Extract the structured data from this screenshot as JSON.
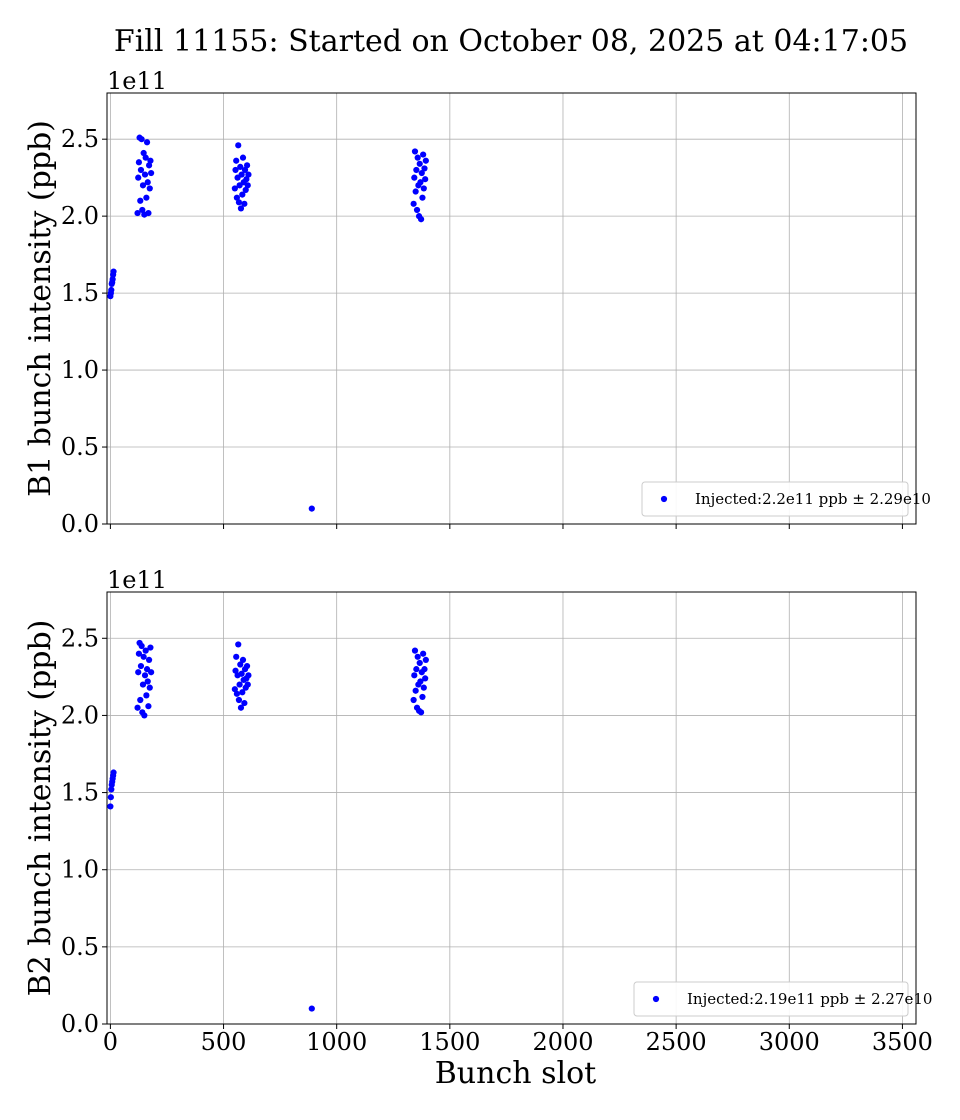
{
  "title": "Fill 11155: Started on October 08, 2025 at 04:17:05",
  "x_ticks": [
    0,
    500,
    1000,
    1500,
    2000,
    2500,
    3000,
    3500
  ],
  "y_ticks": [
    "0.0",
    "0.5",
    "1.0",
    "1.5",
    "2.0",
    "2.5"
  ],
  "colors": {
    "points": "#0000ff",
    "grid": "#b0b0b0",
    "axis": "#000000"
  },
  "chart_data": [
    {
      "type": "scatter",
      "ylabel": "B1 bunch intensity (ppb)",
      "xlabel": "",
      "y_scale_label": "1e11",
      "xlim": [
        -15,
        3560
      ],
      "ylim": [
        0,
        2.8
      ],
      "grid": true,
      "legend_position": "bottom-right",
      "series": [
        {
          "name": "Injected:2.2e11 ppb ± 2.29e10",
          "x": [
            0,
            2,
            4,
            6,
            8,
            10,
            12,
            14,
            120,
            123,
            126,
            129,
            132,
            135,
            138,
            141,
            144,
            147,
            150,
            153,
            156,
            159,
            162,
            165,
            168,
            171,
            174,
            177,
            180,
            550,
            553,
            556,
            559,
            562,
            565,
            568,
            571,
            574,
            577,
            580,
            583,
            586,
            589,
            592,
            595,
            598,
            601,
            604,
            607,
            610,
            890,
            1340,
            1343,
            1346,
            1349,
            1352,
            1355,
            1358,
            1361,
            1364,
            1367,
            1370,
            1373,
            1376,
            1379,
            1382,
            1385,
            1388,
            1391,
            1394
          ],
          "y": [
            1.48,
            1.5,
            1.52,
            1.56,
            1.57,
            1.59,
            1.62,
            1.64,
            2.02,
            2.25,
            2.35,
            2.51,
            2.1,
            2.3,
            2.5,
            2.04,
            2.2,
            2.41,
            2.01,
            2.27,
            2.38,
            2.12,
            2.48,
            2.22,
            2.02,
            2.33,
            2.18,
            2.36,
            2.28,
            2.18,
            2.3,
            2.36,
            2.12,
            2.25,
            2.46,
            2.09,
            2.2,
            2.32,
            2.05,
            2.27,
            2.14,
            2.38,
            2.22,
            2.08,
            2.3,
            2.17,
            2.24,
            2.33,
            2.2,
            2.27,
            0.1,
            2.08,
            2.25,
            2.42,
            2.16,
            2.3,
            2.04,
            2.38,
            2.2,
            2.0,
            2.34,
            2.22,
            1.98,
            2.28,
            2.12,
            2.4,
            2.18,
            2.31,
            2.24,
            2.36
          ]
        }
      ]
    },
    {
      "type": "scatter",
      "ylabel": "B2 bunch intensity (ppb)",
      "xlabel": "Bunch slot",
      "y_scale_label": "1e11",
      "xlim": [
        -15,
        3560
      ],
      "ylim": [
        0,
        2.8
      ],
      "grid": true,
      "legend_position": "bottom-right",
      "series": [
        {
          "name": "Injected:2.19e11 ppb ± 2.27e10",
          "x": [
            0,
            2,
            4,
            6,
            8,
            10,
            12,
            14,
            120,
            123,
            126,
            129,
            132,
            135,
            138,
            141,
            144,
            147,
            150,
            153,
            156,
            159,
            162,
            165,
            168,
            171,
            174,
            177,
            180,
            550,
            553,
            556,
            559,
            562,
            565,
            568,
            571,
            574,
            577,
            580,
            583,
            586,
            589,
            592,
            595,
            598,
            601,
            604,
            607,
            610,
            890,
            1340,
            1343,
            1346,
            1349,
            1352,
            1355,
            1358,
            1361,
            1364,
            1367,
            1370,
            1373,
            1376,
            1379,
            1382,
            1385,
            1388,
            1391,
            1394
          ],
          "y": [
            1.41,
            1.47,
            1.52,
            1.55,
            1.57,
            1.59,
            1.61,
            1.63,
            2.05,
            2.28,
            2.4,
            2.47,
            2.1,
            2.32,
            2.45,
            2.02,
            2.2,
            2.38,
            2.0,
            2.26,
            2.42,
            2.13,
            2.3,
            2.22,
            2.06,
            2.36,
            2.18,
            2.44,
            2.28,
            2.17,
            2.29,
            2.38,
            2.14,
            2.26,
            2.46,
            2.1,
            2.2,
            2.33,
            2.05,
            2.27,
            2.15,
            2.36,
            2.23,
            2.08,
            2.3,
            2.18,
            2.24,
            2.32,
            2.2,
            2.26,
            0.1,
            2.1,
            2.26,
            2.42,
            2.16,
            2.3,
            2.05,
            2.38,
            2.2,
            2.03,
            2.34,
            2.22,
            2.02,
            2.28,
            2.12,
            2.4,
            2.18,
            2.3,
            2.24,
            2.36
          ]
        }
      ]
    }
  ]
}
